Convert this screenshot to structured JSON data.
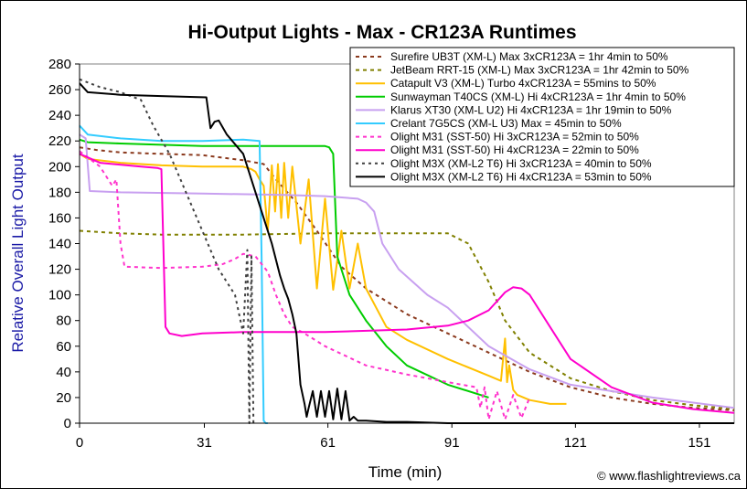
{
  "chart_data": {
    "type": "line",
    "title": "Hi-Output Lights - Max - CR123A Runtimes",
    "xlabel": "Time (min)",
    "ylabel": "Relative Overall Light Output",
    "xlim": [
      0,
      160
    ],
    "ylim": [
      0,
      280
    ],
    "x_ticks": [
      "0",
      "31",
      "61",
      "91",
      "121",
      "151"
    ],
    "x_tick_values": [
      0,
      30.5,
      60.7,
      91,
      121.2,
      151.5
    ],
    "y_ticks": [
      "0",
      "20",
      "40",
      "60",
      "80",
      "100",
      "120",
      "140",
      "160",
      "180",
      "200",
      "220",
      "240",
      "260",
      "280"
    ],
    "grid": "horizontal-none",
    "legend_position": "top-right",
    "credit": "© www.flashlightreviews.ca",
    "series": [
      {
        "name": "Surefire UB3T (XM-L) Max 3xCR123A = 1hr 4min to 50%",
        "color": "#8B3A1E",
        "dash": "4,4",
        "x": [
          0,
          4,
          10,
          20,
          30,
          40,
          45,
          48,
          53,
          58,
          64,
          70,
          80,
          90,
          100,
          110,
          120,
          130,
          140,
          150,
          160
        ],
        "y": [
          215,
          213,
          211,
          210,
          209,
          205,
          202,
          190,
          172,
          150,
          122,
          105,
          85,
          70,
          55,
          40,
          28,
          20,
          15,
          12,
          10
        ]
      },
      {
        "name": "JetBeam RRT-15 (XM-L) Max 3xCR123A = 1hr 42min to 50%",
        "color": "#808000",
        "dash": "4,4",
        "x": [
          0,
          10,
          20,
          40,
          60,
          80,
          90,
          95,
          100,
          104,
          110,
          120,
          130,
          140,
          150,
          160
        ],
        "y": [
          150,
          148,
          147,
          147,
          148,
          148,
          148,
          140,
          110,
          80,
          55,
          35,
          25,
          18,
          14,
          11
        ]
      },
      {
        "name": "Catapult V3 (XM-L) Turbo 4xCR123A = 55mins to 50%",
        "color": "#FFC000",
        "dash": "",
        "x": [
          0,
          2,
          10,
          20,
          30,
          38,
          40,
          42,
          43,
          44,
          45,
          46,
          47,
          47.8,
          48.5,
          49.3,
          50,
          51,
          52,
          54,
          56,
          58,
          60,
          62,
          64,
          66,
          68,
          70,
          75,
          80,
          90,
          100,
          103,
          104,
          104.5,
          105,
          106,
          107,
          110,
          115,
          119
        ],
        "y": [
          210,
          206,
          203,
          201,
          200,
          200,
          200,
          198,
          196,
          190,
          185,
          150,
          201,
          165,
          202,
          160,
          203,
          160,
          200,
          140,
          190,
          105,
          175,
          104,
          150,
          105,
          140,
          105,
          75,
          65,
          50,
          37,
          33,
          66,
          32,
          45,
          26,
          22,
          18,
          15,
          15
        ]
      },
      {
        "name": "Sunwayman T40CS (XM-L) Hi 4xCR123A = 1hr 4min to 50%",
        "color": "#00CC00",
        "dash": "",
        "x": [
          0,
          2,
          10,
          30,
          50,
          58,
          60,
          61,
          62,
          63,
          66,
          70,
          75,
          80,
          90,
          100
        ],
        "y": [
          221,
          219,
          218,
          216,
          216,
          216,
          216,
          215,
          210,
          130,
          100,
          80,
          60,
          45,
          30,
          20
        ]
      },
      {
        "name": "Klarus XT30 (XM-L U2) Hi 4xCR123A = 1hr 19min to 50%",
        "color": "#C8A0F0",
        "dash": "",
        "x": [
          0,
          1.5,
          2.5,
          10,
          30,
          50,
          60,
          68,
          70,
          72,
          74,
          78,
          85,
          90,
          100,
          110,
          120,
          140,
          160
        ],
        "y": [
          225,
          222,
          181,
          180,
          179,
          178,
          177,
          175,
          172,
          165,
          140,
          120,
          100,
          90,
          60,
          42,
          30,
          20,
          12
        ]
      },
      {
        "name": "Crelant 7G5CS (XM-L U3) Max = 45min to 50%",
        "color": "#33CCFF",
        "dash": "",
        "x": [
          0,
          2,
          10,
          20,
          30,
          40,
          44,
          44.5,
          45,
          45.5,
          46
        ],
        "y": [
          232,
          225,
          222,
          220,
          220,
          221,
          220,
          130,
          2,
          0,
          0
        ]
      },
      {
        "name": "Olight M31 (SST-50) Hi 3xCR123A = 52min to 50%",
        "color": "#FF33CC",
        "dash": "4,4",
        "x": [
          0,
          5,
          8,
          9,
          10,
          11,
          20,
          30,
          35,
          38,
          40,
          43,
          46,
          48,
          50,
          52,
          55,
          60,
          70,
          80,
          90,
          97,
          98,
          99,
          100,
          102,
          104,
          106,
          108,
          110
        ],
        "y": [
          212,
          200,
          185,
          190,
          140,
          122,
          121,
          122,
          124,
          128,
          132,
          130,
          118,
          100,
          85,
          75,
          70,
          60,
          45,
          38,
          32,
          28,
          12,
          28,
          3,
          25,
          3,
          22,
          4,
          20
        ]
      },
      {
        "name": "Olight M31 (SST-50) Hi 4xCR123A = 22min to 50%",
        "color": "#FF00CC",
        "dash": "",
        "x": [
          0,
          5,
          15,
          19,
          20,
          21,
          22,
          25,
          30,
          40,
          60,
          80,
          90,
          95,
          100,
          102,
          104,
          106,
          108,
          110,
          115,
          120,
          130,
          140,
          150,
          160
        ],
        "y": [
          210,
          203,
          200,
          199,
          198,
          75,
          70,
          68,
          70,
          71,
          71,
          73,
          76,
          80,
          88,
          95,
          102,
          106,
          105,
          100,
          75,
          50,
          28,
          16,
          11,
          8
        ]
      },
      {
        "name": "Olight M3X (XM-L2 T6) Hi 3xCR123A = 40min to 50%",
        "color": "#404040",
        "dash": "3,4",
        "x": [
          0,
          5,
          10,
          15,
          18,
          22,
          26,
          30,
          34,
          36,
          38,
          40,
          41,
          41.5,
          42,
          42.5,
          43
        ],
        "y": [
          268,
          262,
          258,
          252,
          232,
          210,
          180,
          150,
          120,
          110,
          100,
          70,
          135,
          0,
          130,
          0,
          0
        ]
      },
      {
        "name": "Olight M3X (XM-L2 T6) Hi 4xCR123A = 53min to 50%",
        "color": "#000000",
        "dash": "",
        "x": [
          0,
          2,
          10,
          20,
          31,
          32,
          33,
          34,
          36,
          40,
          44,
          47,
          49,
          50,
          51,
          52,
          53,
          54,
          55,
          55.5,
          56,
          57,
          58,
          59,
          60,
          61,
          62,
          63,
          64,
          65,
          66,
          67,
          68,
          70,
          75,
          80,
          90,
          100,
          120,
          140,
          160
        ],
        "y": [
          265,
          258,
          256,
          255,
          254,
          230,
          235,
          236,
          225,
          210,
          170,
          140,
          115,
          105,
          97,
          85,
          70,
          30,
          15,
          5,
          12,
          25,
          5,
          25,
          5,
          25,
          3,
          27,
          3,
          25,
          2,
          5,
          2,
          2,
          1,
          1,
          0,
          0,
          0,
          0,
          0
        ]
      }
    ]
  }
}
